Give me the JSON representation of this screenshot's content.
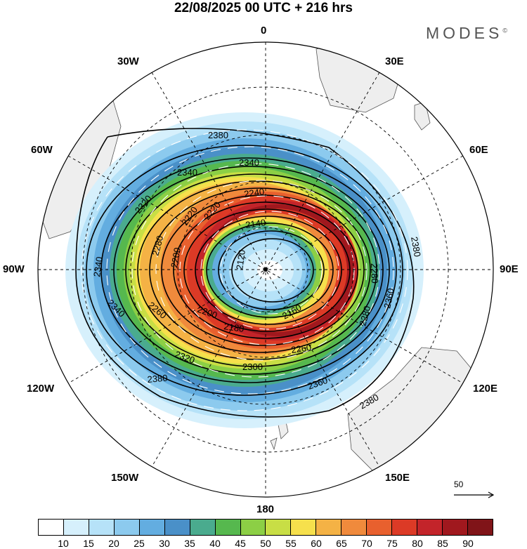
{
  "title": "22/08/2025  00 UTC  + 216 hrs",
  "brand": "MODES",
  "brand_mark": "©",
  "longitude_labels": {
    "n0": "0",
    "e30": "30E",
    "e60": "60E",
    "e90": "90E",
    "e120": "120E",
    "e150": "150E",
    "s180": "180",
    "w150": "150W",
    "w120": "120W",
    "w90": "90W",
    "w60": "60W",
    "w30": "30W"
  },
  "contour_labels": {
    "c2380a": "2380",
    "c2380b": "2380",
    "c2380c": "2380",
    "c2380d": "2380",
    "c2360a": "2360",
    "c2360b": "2360",
    "c2340a": "2340",
    "c2340b": "2340",
    "c2340c": "2340",
    "c2340d": "2340",
    "c2320a": "2320",
    "c2320b": "2320",
    "c2300": "2300",
    "c2280a": "2280",
    "c2280b": "2280",
    "c2280c": "2280",
    "c2260a": "2260",
    "c2260b": "2260",
    "c2240": "2240",
    "c2220a": "2220",
    "c2220b": "2220",
    "c2200a": "2200",
    "c2200b": "2200",
    "c2180": "2180",
    "c2160": "2160",
    "c2140": "2140",
    "c2120": "2120"
  },
  "reference_vector_label": "50",
  "colorbar": {
    "ticks": [
      "10",
      "15",
      "20",
      "25",
      "30",
      "35",
      "40",
      "45",
      "50",
      "55",
      "60",
      "65",
      "70",
      "75",
      "80",
      "85",
      "90"
    ],
    "colors": [
      "#ffffff",
      "#d6f0fc",
      "#b6e2f8",
      "#8ccaee",
      "#63ade0",
      "#4a90c8",
      "#4aab8e",
      "#56b84e",
      "#8ccf45",
      "#c8de45",
      "#f6e04c",
      "#f4b245",
      "#f08a3c",
      "#e8602e",
      "#dc3a26",
      "#c3242a",
      "#a0181e",
      "#801418"
    ]
  },
  "chart_data": {
    "type": "polar-stereographic-map",
    "title": "22/08/2025  00 UTC  + 216 hrs",
    "projection": "south-polar-stereographic",
    "field": "wind speed (shaded) and geopotential height (contours)",
    "color_scale_ticks": [
      10,
      15,
      20,
      25,
      30,
      35,
      40,
      45,
      50,
      55,
      60,
      65,
      70,
      75,
      80,
      85,
      90
    ],
    "contour_levels": [
      2120,
      2140,
      2160,
      2180,
      2200,
      2220,
      2240,
      2260,
      2280,
      2300,
      2320,
      2340,
      2360,
      2380
    ],
    "longitude_labels": [
      "0",
      "30E",
      "60E",
      "90E",
      "120E",
      "150E",
      "180",
      "150W",
      "120W",
      "90W",
      "60W",
      "30W"
    ],
    "reference_vector": 50
  }
}
